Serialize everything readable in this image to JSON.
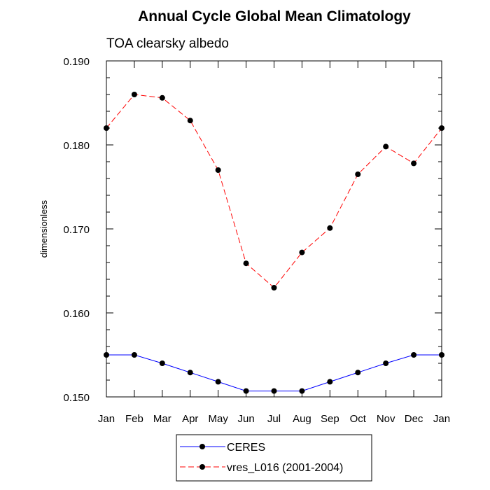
{
  "chart_data": {
    "type": "line",
    "title": "Annual Cycle Global Mean Climatology",
    "subtitle": "TOA clearsky albedo",
    "xlabel": "",
    "ylabel": "dimensionless",
    "categories": [
      "Jan",
      "Feb",
      "Mar",
      "Apr",
      "May",
      "Jun",
      "Jul",
      "Aug",
      "Sep",
      "Oct",
      "Nov",
      "Dec",
      "Jan"
    ],
    "ylim": [
      0.15,
      0.19
    ],
    "yticks": [
      "0.150",
      "0.160",
      "0.170",
      "0.180",
      "0.190"
    ],
    "grid": false,
    "legend_position": "bottom",
    "series": [
      {
        "name": "CERES",
        "color": "#0000ff",
        "line_style": "solid",
        "marker": "filled-circle",
        "values": [
          0.155,
          0.155,
          0.154,
          0.1529,
          0.1518,
          0.1507,
          0.1507,
          0.1507,
          0.1518,
          0.1529,
          0.154,
          0.155,
          0.155
        ]
      },
      {
        "name": "vres_L016 (2001-2004)",
        "color": "#ff0000",
        "line_style": "dashed",
        "marker": "filled-circle",
        "values": [
          0.182,
          0.186,
          0.1856,
          0.1829,
          0.177,
          0.1659,
          0.163,
          0.1672,
          0.1701,
          0.1765,
          0.1798,
          0.1778,
          0.182
        ]
      }
    ]
  }
}
